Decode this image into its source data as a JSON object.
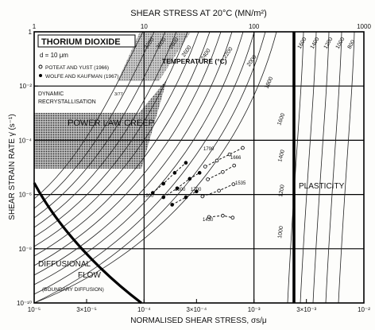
{
  "chart_data": {
    "type": "line",
    "title": "THORIUM DIOXIDE",
    "grain_size": "d = 10 μm",
    "top_axis_label": "SHEAR STRESS AT 20°C (MN/m²)",
    "top_ticks": [
      "1",
      "10",
      "100",
      "1000"
    ],
    "ylabel": "SHEAR STRAIN RATE γ̇ (s⁻¹)",
    "yticks": [
      "1",
      "10⁻²",
      "10⁻⁴",
      "10⁻⁶",
      "10⁻⁸",
      "10⁻¹⁰"
    ],
    "xlabel": "NORMALISED SHEAR STRESS, σs/μ",
    "xticks": [
      "10⁻⁵",
      "3×10⁻⁵",
      "10⁻⁴",
      "3×10⁻⁴",
      "10⁻³",
      "3×10⁻³",
      "10⁻²"
    ],
    "x_scale": "log",
    "y_scale": "log",
    "xlim": [
      1e-05,
      0.01
    ],
    "ylim": [
      1e-10,
      1
    ],
    "legend": [
      {
        "marker": "open-circle",
        "label": "POTEAT AND YUST (1966)"
      },
      {
        "marker": "filled-circle",
        "label": "WOLFE AND KAUFMAN (1967)"
      }
    ],
    "field_labels": {
      "temperature_header": "TEMPERATURE (°C)",
      "dynamic_recryst": "DYNAMIC RECRYSTALLISATION",
      "tm_mark": "3/77",
      "power_law": "POWER LAW CREEP",
      "plasticity": "PLASTICITY",
      "diffusional_1": "DIFFUSIONAL",
      "diffusional_2": "FLOW",
      "boundary": "(BOUNDARY DIFFUSION)"
    },
    "contour_labels": [
      "3200",
      "3000",
      "2800",
      "2600",
      "2400",
      "2200",
      "2000",
      "1800",
      "1600",
      "1400",
      "1200",
      "1000",
      "1600",
      "1400",
      "1200",
      "1000",
      "800"
    ],
    "data_labels": [
      "1790",
      "1666",
      "1535",
      "1900",
      "1800",
      "1700",
      "1430"
    ],
    "series": [
      {
        "label": "1790",
        "marker": "open",
        "points": [
          [
            0.00036,
            1.07e-05
          ],
          [
            0.00046,
            1.78e-05
          ],
          [
            0.0006,
            3.02e-05
          ],
          [
            0.00079,
            5.25e-05
          ]
        ]
      },
      {
        "label": "1666",
        "marker": "open",
        "points": [
          [
            0.00038,
            3.63e-06
          ],
          [
            0.00052,
            6.76e-06
          ],
          [
            0.00066,
            1.17e-05
          ]
        ]
      },
      {
        "label": "1535",
        "marker": "open",
        "points": [
          [
            0.00034,
            8.5e-07
          ],
          [
            0.00048,
            1.38e-06
          ],
          [
            0.00065,
            2.4e-06
          ]
        ]
      },
      {
        "label": "1430",
        "marker": "open",
        "points": [
          [
            0.00039,
            1.48e-07
          ],
          [
            0.00052,
            1.66e-07
          ],
          [
            0.00064,
            1.4e-07
          ]
        ]
      },
      {
        "label": "1900",
        "marker": "filled",
        "points": [
          [
            0.00012,
            1.15e-06
          ],
          [
            0.00015,
            2.5e-06
          ],
          [
            0.00019,
            6.3e-06
          ],
          [
            0.00024,
            1.48e-05
          ]
        ]
      },
      {
        "label": "1800",
        "marker": "filled",
        "points": [
          [
            0.00015,
            7.9e-07
          ],
          [
            0.0002,
            1.7e-06
          ],
          [
            0.00026,
            3.8e-06
          ],
          [
            0.00032,
            6.3e-06
          ]
        ]
      },
      {
        "label": "1700",
        "marker": "filled",
        "points": [
          [
            0.00018,
            4.2e-07
          ],
          [
            0.00024,
            7.9e-07
          ],
          [
            0.0003,
            1.3e-06
          ]
        ]
      }
    ]
  }
}
